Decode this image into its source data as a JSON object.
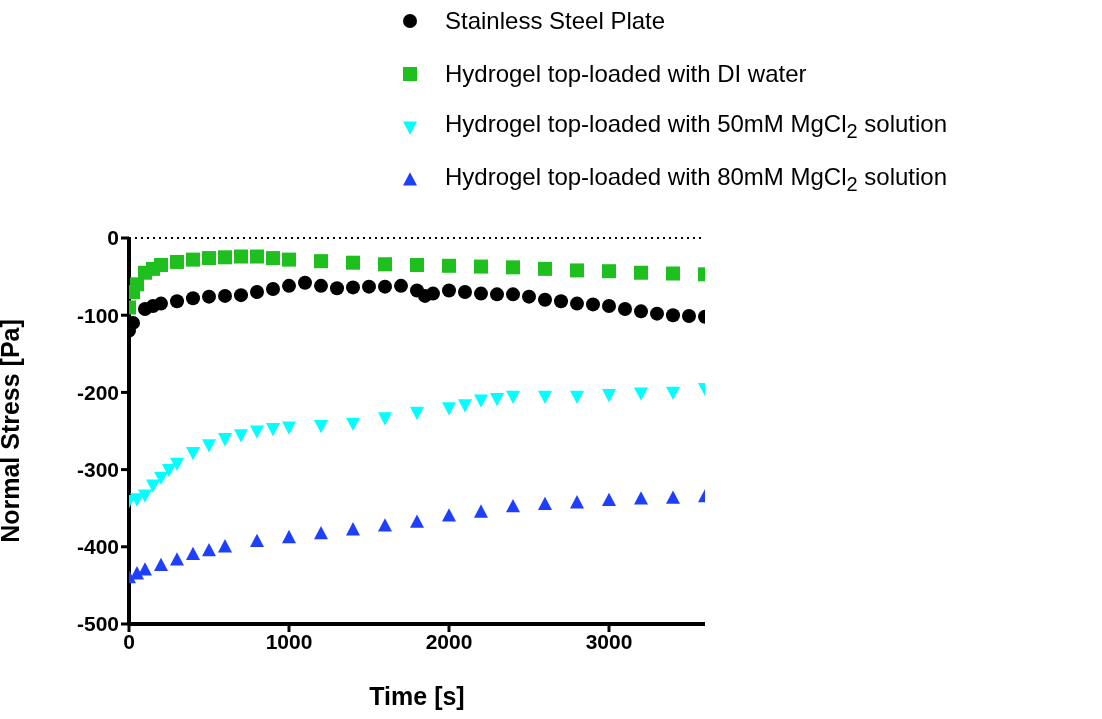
{
  "chart_data": {
    "type": "scatter",
    "xlabel": "Time [s]",
    "ylabel": "Normal Stress [Pa]",
    "xlim": [
      0,
      3600
    ],
    "xticks": [
      0,
      1000,
      2000,
      3000
    ],
    "ylim": [
      -500,
      0
    ],
    "yticks": [
      0,
      -100,
      -200,
      -300,
      -400,
      -500
    ],
    "grid": false,
    "legend": "top right",
    "ref_lines": [
      {
        "axis": "y",
        "value": 0,
        "color": "#000000",
        "line_style": "dotted"
      }
    ],
    "series": [
      {
        "name": "Stainless Steel Plate",
        "color": "#000000",
        "marker": "circle",
        "x": [
          0,
          25,
          100,
          150,
          200,
          300,
          400,
          500,
          600,
          700,
          800,
          900,
          1000,
          1100,
          1200,
          1300,
          1400,
          1500,
          1600,
          1700,
          1800,
          1850,
          1900,
          2000,
          2100,
          2200,
          2300,
          2400,
          2500,
          2600,
          2700,
          2800,
          2900,
          3000,
          3100,
          3200,
          3300,
          3400,
          3500,
          3600
        ],
        "values": [
          -120,
          -110,
          -92,
          -88,
          -85,
          -82,
          -78,
          -76,
          -75,
          -74,
          -70,
          -66,
          -62,
          -58,
          -62,
          -65,
          -64,
          -63,
          -63,
          -62,
          -68,
          -75,
          -72,
          -68,
          -70,
          -72,
          -73,
          -73,
          -76,
          -80,
          -82,
          -85,
          -86,
          -88,
          -92,
          -95,
          -98,
          -100,
          -101,
          -102
        ]
      },
      {
        "name": "Hydrogel top-loaded with DI water",
        "color": "#1fbf1f",
        "marker": "square",
        "x": [
          0,
          25,
          50,
          100,
          150,
          200,
          300,
          400,
          500,
          600,
          700,
          800,
          900,
          1000,
          1200,
          1400,
          1600,
          1800,
          2000,
          2200,
          2400,
          2600,
          2800,
          3000,
          3200,
          3400,
          3600
        ],
        "values": [
          -90,
          -70,
          -60,
          -45,
          -40,
          -35,
          -31,
          -28,
          -26,
          -25,
          -24,
          -24,
          -26,
          -28,
          -30,
          -32,
          -34,
          -35,
          -36,
          -37,
          -38,
          -40,
          -42,
          -43,
          -45,
          -46,
          -47
        ]
      },
      {
        "name": "Hydrogel top-loaded with 50mM MgCl$_{2}$ solution",
        "color": "#00ffff",
        "marker": "triangle-down",
        "x": [
          0,
          50,
          100,
          150,
          200,
          250,
          300,
          400,
          500,
          600,
          700,
          800,
          900,
          1000,
          1200,
          1400,
          1600,
          1800,
          2000,
          2100,
          2200,
          2300,
          2400,
          2600,
          2800,
          3000,
          3200,
          3400,
          3600
        ],
        "values": [
          -340,
          -338,
          -333,
          -320,
          -310,
          -300,
          -292,
          -278,
          -268,
          -260,
          -255,
          -250,
          -247,
          -245,
          -243,
          -240,
          -233,
          -226,
          -220,
          -216,
          -210,
          -208,
          -205,
          -205,
          -205,
          -203,
          -201,
          -200,
          -195
        ]
      },
      {
        "name": "Hydrogel top-loaded with 80mM MgCl$_{2}$ solution",
        "color": "#1f3fff",
        "marker": "triangle",
        "x": [
          0,
          50,
          100,
          200,
          300,
          400,
          500,
          600,
          800,
          1000,
          1200,
          1400,
          1600,
          1800,
          2000,
          2200,
          2400,
          2600,
          2800,
          3000,
          3200,
          3400,
          3600
        ],
        "values": [
          -440,
          -435,
          -430,
          -424,
          -417,
          -410,
          -405,
          -400,
          -393,
          -388,
          -383,
          -378,
          -373,
          -368,
          -360,
          -355,
          -348,
          -345,
          -343,
          -340,
          -338,
          -337,
          -335
        ]
      }
    ]
  }
}
